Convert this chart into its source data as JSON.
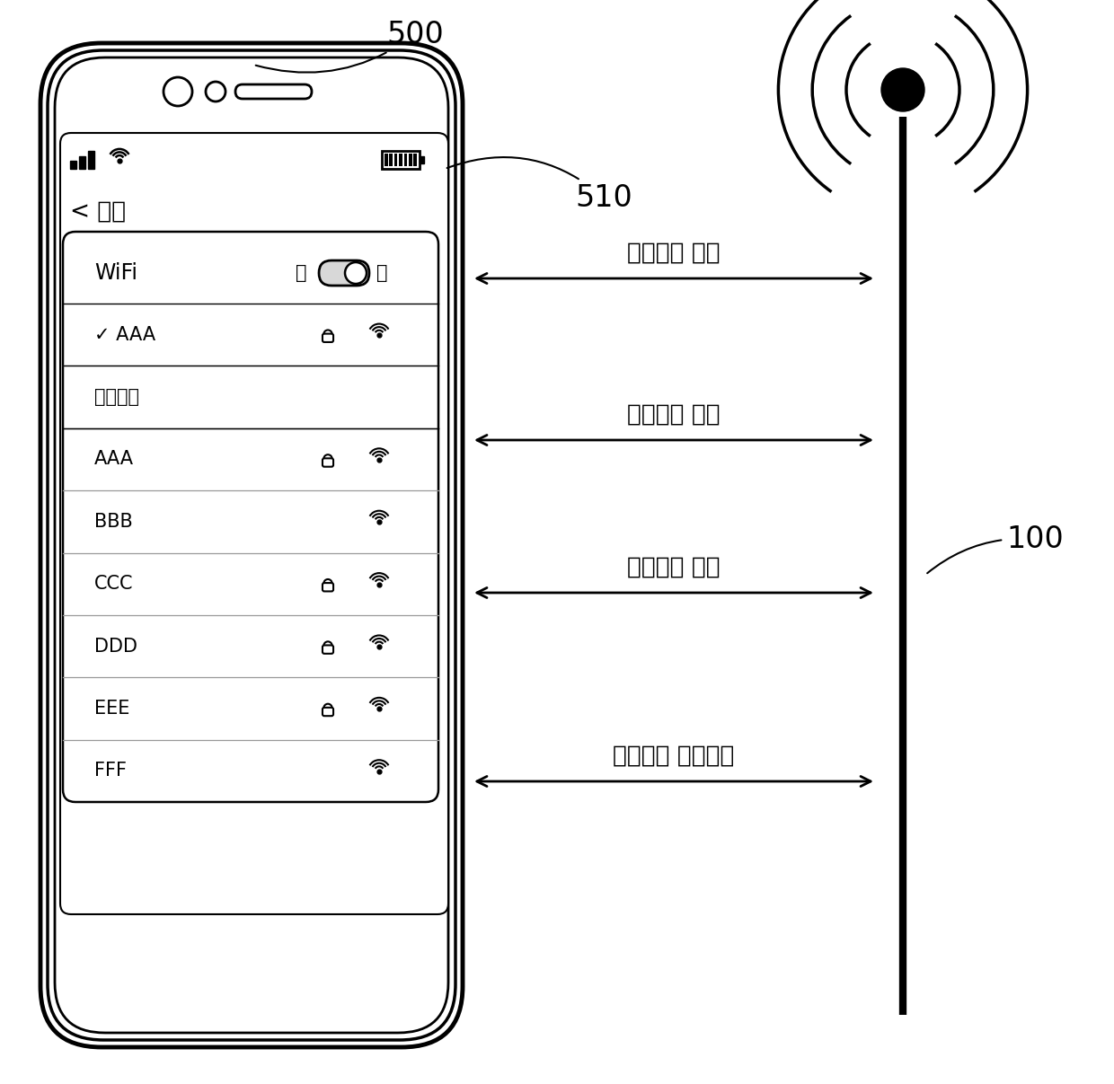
{
  "bg_color": "#ffffff",
  "label_500": "500",
  "label_510": "510",
  "label_100": "100",
  "steps": [
    {
      "label": "第一步： 扫描"
    },
    {
      "label": "第二步： 认证"
    },
    {
      "label": "第三步： 关联"
    },
    {
      "label": "第四步： 连接成功"
    }
  ],
  "wifi_rows": [
    {
      "name": "✓ AAA",
      "lock": true,
      "wifi": true
    },
    {
      "name": "扫描网络",
      "lock": false,
      "wifi": false
    },
    {
      "name": "AAA",
      "lock": true,
      "wifi": true
    },
    {
      "name": "BBB",
      "lock": false,
      "wifi": true
    },
    {
      "name": "CCC",
      "lock": true,
      "wifi": true
    },
    {
      "name": "DDD",
      "lock": true,
      "wifi": true
    },
    {
      "name": "EEE",
      "lock": true,
      "wifi": true
    },
    {
      "name": "FFF",
      "lock": false,
      "wifi": true
    }
  ],
  "settings_label": "< 设置",
  "wifi_label": "WiFi",
  "toggle_off": "关",
  "toggle_on": "开",
  "scan_network": "扫描网络",
  "phone_outer_lw": 3.5,
  "phone_mid_lw": 2.5,
  "phone_inner_lw": 2.0,
  "panel_lw": 1.8,
  "arrow_lw": 2.0
}
